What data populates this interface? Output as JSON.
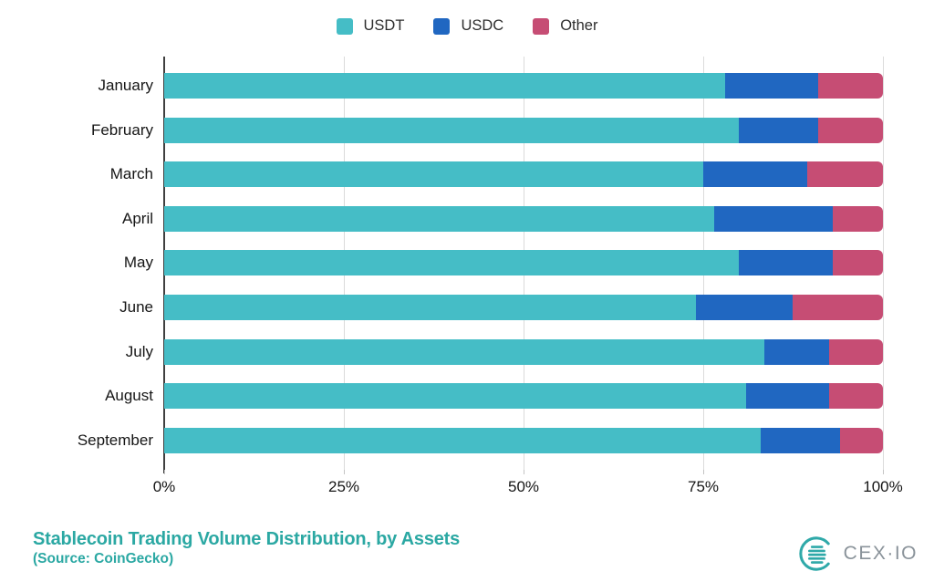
{
  "chart_data": {
    "type": "bar",
    "orientation": "horizontal",
    "stacked": true,
    "title": "Stablecoin Trading Volume Distribution, by Assets",
    "source_note": "(Source: CoinGecko)",
    "categories": [
      "January",
      "February",
      "March",
      "April",
      "May",
      "June",
      "July",
      "August",
      "September"
    ],
    "series": [
      {
        "name": "USDT",
        "color": "#45BDC6",
        "values": [
          78,
          80,
          75,
          76.5,
          80,
          74,
          83.5,
          81,
          83
        ]
      },
      {
        "name": "USDC",
        "color": "#2067C1",
        "values": [
          13,
          11,
          14.5,
          16.5,
          13,
          13.5,
          9,
          11.5,
          11
        ]
      },
      {
        "name": "Other",
        "color": "#C64D74",
        "values": [
          9,
          9,
          10.5,
          7,
          7,
          12.5,
          7.5,
          7.5,
          6
        ]
      }
    ],
    "x_axis": {
      "ticks": [
        "0%",
        "25%",
        "50%",
        "75%",
        "100%"
      ],
      "range": [
        0,
        100
      ],
      "unit": "%"
    },
    "legend_position": "top",
    "grid": "vertical"
  },
  "legend": {
    "items": [
      {
        "label": "USDT",
        "color": "#45BDC6"
      },
      {
        "label": "USDC",
        "color": "#2067C1"
      },
      {
        "label": "Other",
        "color": "#C64D74"
      }
    ]
  },
  "footer": {
    "title": "Stablecoin Trading Volume Distribution, by Assets",
    "source": "(Source: CoinGecko)",
    "brand_text": "CEX·IO"
  },
  "colors": {
    "accent_teal": "#2BA8A3",
    "axis_line": "#3F3F3F",
    "gridline": "#DBDBDB",
    "logo_teal": "#2FA9A9",
    "logo_text_gray": "#8A939A"
  }
}
